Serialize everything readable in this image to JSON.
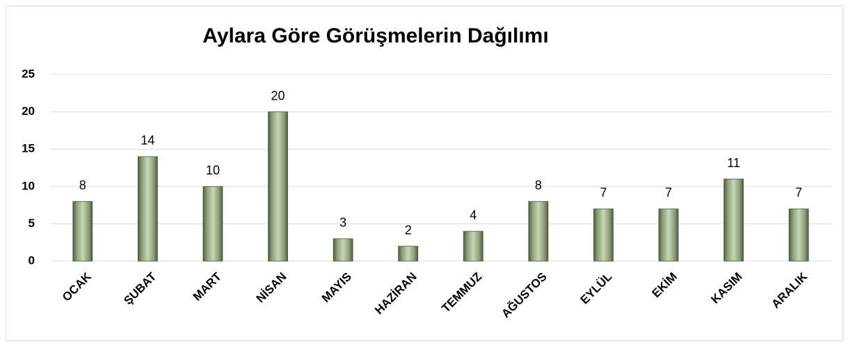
{
  "chart_data": {
    "type": "bar",
    "title": "Aylara Göre Görüşmelerin Dağılımı",
    "categories": [
      "OCAK",
      "ŞUBAT",
      "MART",
      "NİSAN",
      "MAYIS",
      "HAZİRAN",
      "TEMMUZ",
      "AĞUSTOS",
      "EYLÜL",
      "EKİM",
      "KASIM",
      "ARALIK"
    ],
    "values": [
      8,
      14,
      10,
      20,
      3,
      2,
      4,
      8,
      7,
      7,
      11,
      7
    ],
    "color": "#9aab86",
    "ylim": [
      0,
      25
    ],
    "yticks": [
      0,
      5,
      10,
      15,
      20,
      25
    ],
    "grid": true
  }
}
